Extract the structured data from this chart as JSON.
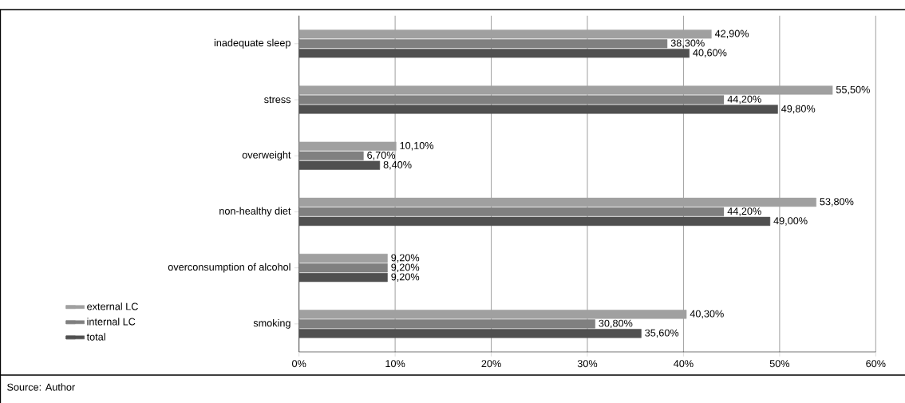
{
  "chart_data": {
    "type": "bar",
    "orientation": "horizontal",
    "categories": [
      "inadequate sleep",
      "stress",
      "overweight",
      "non-healthy diet",
      "overconsumption of alcohol",
      "smoking"
    ],
    "series": [
      {
        "name": "external LC",
        "color": "#a0a0a0",
        "values": [
          42.9,
          55.5,
          10.1,
          53.8,
          9.2,
          40.3
        ],
        "value_labels": [
          "42,90%",
          "55,50%",
          "10,10%",
          "53,80%",
          "9,20%",
          "40,30%"
        ]
      },
      {
        "name": "internal LC",
        "color": "#808080",
        "values": [
          38.3,
          44.2,
          6.7,
          44.2,
          9.2,
          30.8
        ],
        "value_labels": [
          "38,30%",
          "44,20%",
          "6,70%",
          "44,20%",
          "9,20%",
          "30,80%"
        ]
      },
      {
        "name": "total",
        "color": "#505050",
        "values": [
          40.6,
          49.8,
          8.4,
          49.0,
          9.2,
          35.6
        ],
        "value_labels": [
          "40,60%",
          "49,80%",
          "8,40%",
          "49,00%",
          "9,20%",
          "35,60%"
        ]
      }
    ],
    "xlim": [
      0,
      60
    ],
    "xticks": [
      {
        "value": 0,
        "label": "0%"
      },
      {
        "value": 10,
        "label": "10%"
      },
      {
        "value": 20,
        "label": "20%"
      },
      {
        "value": 30,
        "label": "30%"
      },
      {
        "value": 40,
        "label": "40%"
      },
      {
        "value": 50,
        "label": "50%"
      },
      {
        "value": 60,
        "label": "60%"
      }
    ],
    "grid": "x",
    "legend": "bottom left",
    "annotations": [
      "Source: Author"
    ]
  }
}
